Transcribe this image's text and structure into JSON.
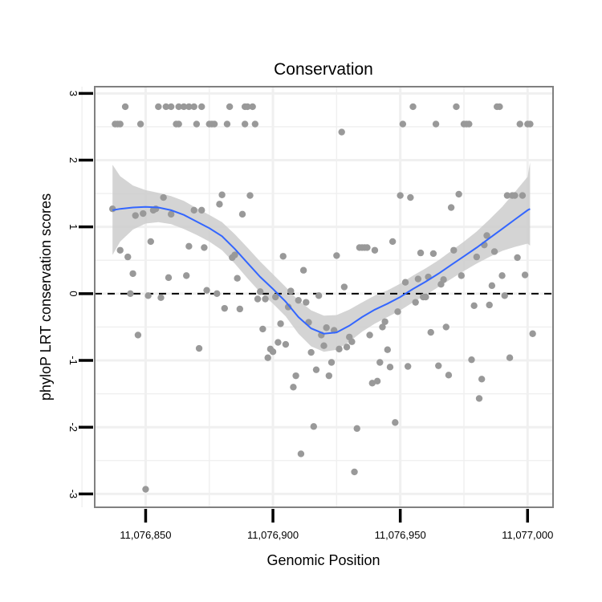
{
  "chart_data": {
    "type": "scatter",
    "title": "Conservation",
    "xlabel": "Genomic Position",
    "ylabel": "phyloP LRT conservation scores",
    "xlim": [
      11076830,
      11077010
    ],
    "ylim": [
      -3.2,
      3.1
    ],
    "x_ticks": [
      11076850,
      11076900,
      11076950,
      11077000
    ],
    "x_tick_labels": [
      "11,076,850",
      "11,076,900",
      "11,076,950",
      "11,077,000"
    ],
    "y_ticks": [
      -3,
      -2,
      -1,
      0,
      1,
      2,
      3
    ],
    "y_tick_labels": [
      "-3",
      "-2",
      "-1",
      "0",
      "1",
      "2",
      "3"
    ],
    "grid": true,
    "reference_line": {
      "y": 0,
      "style": "dashed",
      "color": "#000000"
    },
    "colors": {
      "points": "#999999",
      "smooth_line": "#3366FF",
      "confidence_band": "#cccccc",
      "panel_border": "#808080",
      "grid": "#f0f0f0"
    },
    "points": [
      {
        "x": 11076837,
        "y": 1.27
      },
      {
        "x": 11076838,
        "y": 2.54
      },
      {
        "x": 11076839,
        "y": 2.54
      },
      {
        "x": 11076840,
        "y": 2.54
      },
      {
        "x": 11076840,
        "y": 0.65
      },
      {
        "x": 11076842,
        "y": 2.8
      },
      {
        "x": 11076843,
        "y": 0.55
      },
      {
        "x": 11076844,
        "y": 0
      },
      {
        "x": 11076845,
        "y": 0.3
      },
      {
        "x": 11076846,
        "y": 1.17
      },
      {
        "x": 11076847,
        "y": -0.62
      },
      {
        "x": 11076848,
        "y": 2.54
      },
      {
        "x": 11076849,
        "y": 1.2
      },
      {
        "x": 11076850,
        "y": -2.93
      },
      {
        "x": 11076851,
        "y": -0.03
      },
      {
        "x": 11076852,
        "y": 0.78
      },
      {
        "x": 11076853,
        "y": 1.25
      },
      {
        "x": 11076854,
        "y": 1.27
      },
      {
        "x": 11076855,
        "y": 2.8
      },
      {
        "x": 11076856,
        "y": -0.06
      },
      {
        "x": 11076857,
        "y": 1.44
      },
      {
        "x": 11076858,
        "y": 2.8
      },
      {
        "x": 11076859,
        "y": 0.24
      },
      {
        "x": 11076860,
        "y": 1.19
      },
      {
        "x": 11076860,
        "y": 2.8
      },
      {
        "x": 11076862,
        "y": 2.54
      },
      {
        "x": 11076863,
        "y": 2.54
      },
      {
        "x": 11076863,
        "y": 2.8
      },
      {
        "x": 11076865,
        "y": 2.8
      },
      {
        "x": 11076866,
        "y": 0.27
      },
      {
        "x": 11076867,
        "y": 2.8
      },
      {
        "x": 11076867,
        "y": 0.71
      },
      {
        "x": 11076869,
        "y": 1.25
      },
      {
        "x": 11076869,
        "y": 2.8
      },
      {
        "x": 11076870,
        "y": 2.54
      },
      {
        "x": 11076871,
        "y": -0.82
      },
      {
        "x": 11076872,
        "y": 2.8
      },
      {
        "x": 11076872,
        "y": 1.25
      },
      {
        "x": 11076873,
        "y": 0.69
      },
      {
        "x": 11076874,
        "y": 0.05
      },
      {
        "x": 11076875,
        "y": 2.54
      },
      {
        "x": 11076876,
        "y": 2.54
      },
      {
        "x": 11076877,
        "y": 2.54
      },
      {
        "x": 11076878,
        "y": 0
      },
      {
        "x": 11076879,
        "y": 1.34
      },
      {
        "x": 11076880,
        "y": 1.48
      },
      {
        "x": 11076881,
        "y": -0.22
      },
      {
        "x": 11076882,
        "y": 2.54
      },
      {
        "x": 11076883,
        "y": 2.8
      },
      {
        "x": 11076884,
        "y": 0.54
      },
      {
        "x": 11076885,
        "y": 0.58
      },
      {
        "x": 11076886,
        "y": 0.23
      },
      {
        "x": 11076887,
        "y": -0.23
      },
      {
        "x": 11076888,
        "y": 1.19
      },
      {
        "x": 11076889,
        "y": 2.54
      },
      {
        "x": 11076889,
        "y": 2.8
      },
      {
        "x": 11076890,
        "y": 2.8
      },
      {
        "x": 11076891,
        "y": 1.47
      },
      {
        "x": 11076892,
        "y": 2.8
      },
      {
        "x": 11076893,
        "y": 2.54
      },
      {
        "x": 11076894,
        "y": -0.08
      },
      {
        "x": 11076895,
        "y": 0.03
      },
      {
        "x": 11076896,
        "y": -0.53
      },
      {
        "x": 11076897,
        "y": -0.08
      },
      {
        "x": 11076898,
        "y": -0.96
      },
      {
        "x": 11076899,
        "y": -0.83
      },
      {
        "x": 11076900,
        "y": -0.87
      },
      {
        "x": 11076901,
        "y": -0.05
      },
      {
        "x": 11076902,
        "y": -0.73
      },
      {
        "x": 11076903,
        "y": -0.45
      },
      {
        "x": 11076904,
        "y": 0.56
      },
      {
        "x": 11076905,
        "y": -0.76
      },
      {
        "x": 11076906,
        "y": -0.2
      },
      {
        "x": 11076907,
        "y": 0.04
      },
      {
        "x": 11076908,
        "y": -1.4
      },
      {
        "x": 11076909,
        "y": -1.23
      },
      {
        "x": 11076910,
        "y": -0.1
      },
      {
        "x": 11076911,
        "y": -2.4
      },
      {
        "x": 11076912,
        "y": 0.35
      },
      {
        "x": 11076913,
        "y": -0.13
      },
      {
        "x": 11076914,
        "y": -0.43
      },
      {
        "x": 11076915,
        "y": -0.88
      },
      {
        "x": 11076916,
        "y": -1.99
      },
      {
        "x": 11076917,
        "y": -1.14
      },
      {
        "x": 11076918,
        "y": -0.03
      },
      {
        "x": 11076919,
        "y": -0.62
      },
      {
        "x": 11076920,
        "y": -0.78
      },
      {
        "x": 11076921,
        "y": -0.51
      },
      {
        "x": 11076922,
        "y": -1.23
      },
      {
        "x": 11076923,
        "y": -1.03
      },
      {
        "x": 11076924,
        "y": -0.55
      },
      {
        "x": 11076925,
        "y": 0.57
      },
      {
        "x": 11076926,
        "y": -0.83
      },
      {
        "x": 11076927,
        "y": 2.42
      },
      {
        "x": 11076928,
        "y": 0.1
      },
      {
        "x": 11076929,
        "y": -0.8
      },
      {
        "x": 11076930,
        "y": -0.65
      },
      {
        "x": 11076931,
        "y": -0.72
      },
      {
        "x": 11076932,
        "y": -2.67
      },
      {
        "x": 11076933,
        "y": -2.02
      },
      {
        "x": 11076934,
        "y": 0.69
      },
      {
        "x": 11076935,
        "y": 0.69
      },
      {
        "x": 11076936,
        "y": 0.69
      },
      {
        "x": 11076937,
        "y": 0.69
      },
      {
        "x": 11076938,
        "y": -0.62
      },
      {
        "x": 11076939,
        "y": -1.34
      },
      {
        "x": 11076940,
        "y": 0.65
      },
      {
        "x": 11076941,
        "y": -1.31
      },
      {
        "x": 11076942,
        "y": -1.03
      },
      {
        "x": 11076943,
        "y": -0.5
      },
      {
        "x": 11076944,
        "y": -0.42
      },
      {
        "x": 11076945,
        "y": -0.84
      },
      {
        "x": 11076946,
        "y": -1.1
      },
      {
        "x": 11076947,
        "y": 0.78
      },
      {
        "x": 11076948,
        "y": -1.93
      },
      {
        "x": 11076949,
        "y": -0.27
      },
      {
        "x": 11076950,
        "y": 1.47
      },
      {
        "x": 11076951,
        "y": 2.54
      },
      {
        "x": 11076952,
        "y": 0.17
      },
      {
        "x": 11076953,
        "y": -1.09
      },
      {
        "x": 11076954,
        "y": 1.44
      },
      {
        "x": 11076955,
        "y": 2.8
      },
      {
        "x": 11076956,
        "y": -0.13
      },
      {
        "x": 11076957,
        "y": 0.22
      },
      {
        "x": 11076958,
        "y": 0.61
      },
      {
        "x": 11076959,
        "y": -0.05
      },
      {
        "x": 11076960,
        "y": -0.05
      },
      {
        "x": 11076961,
        "y": 0.25
      },
      {
        "x": 11076962,
        "y": -0.58
      },
      {
        "x": 11076963,
        "y": 0.6
      },
      {
        "x": 11076964,
        "y": 2.54
      },
      {
        "x": 11076965,
        "y": -1.08
      },
      {
        "x": 11076966,
        "y": 0.14
      },
      {
        "x": 11076967,
        "y": 0.21
      },
      {
        "x": 11076968,
        "y": -0.5
      },
      {
        "x": 11076969,
        "y": -1.22
      },
      {
        "x": 11076970,
        "y": 1.29
      },
      {
        "x": 11076971,
        "y": 0.65
      },
      {
        "x": 11076972,
        "y": 2.8
      },
      {
        "x": 11076973,
        "y": 1.49
      },
      {
        "x": 11076974,
        "y": 0.27
      },
      {
        "x": 11076975,
        "y": 2.54
      },
      {
        "x": 11076976,
        "y": 2.54
      },
      {
        "x": 11076977,
        "y": 2.54
      },
      {
        "x": 11076978,
        "y": -0.99
      },
      {
        "x": 11076979,
        "y": -0.18
      },
      {
        "x": 11076980,
        "y": 0.55
      },
      {
        "x": 11076981,
        "y": -1.57
      },
      {
        "x": 11076982,
        "y": -1.28
      },
      {
        "x": 11076983,
        "y": 0.73
      },
      {
        "x": 11076984,
        "y": 0.87
      },
      {
        "x": 11076985,
        "y": -0.17
      },
      {
        "x": 11076986,
        "y": 0.12
      },
      {
        "x": 11076987,
        "y": 0.63
      },
      {
        "x": 11076988,
        "y": 2.8
      },
      {
        "x": 11076989,
        "y": 2.8
      },
      {
        "x": 11076990,
        "y": 0.27
      },
      {
        "x": 11076991,
        "y": -0.03
      },
      {
        "x": 11076992,
        "y": 1.47
      },
      {
        "x": 11076993,
        "y": -0.96
      },
      {
        "x": 11076994,
        "y": 1.47
      },
      {
        "x": 11076995,
        "y": 1.47
      },
      {
        "x": 11076996,
        "y": 0.54
      },
      {
        "x": 11076997,
        "y": 2.54
      },
      {
        "x": 11076998,
        "y": 1.47
      },
      {
        "x": 11076999,
        "y": 0.28
      },
      {
        "x": 11077000,
        "y": 2.54
      },
      {
        "x": 11077001,
        "y": 2.54
      },
      {
        "x": 11077002,
        "y": -0.6
      }
    ],
    "smooth": [
      {
        "x": 11076837,
        "y": 1.25,
        "lo": 0.58,
        "hi": 1.93
      },
      {
        "x": 11076840,
        "y": 1.27,
        "lo": 0.78,
        "hi": 1.76
      },
      {
        "x": 11076845,
        "y": 1.29,
        "lo": 0.96,
        "hi": 1.62
      },
      {
        "x": 11076850,
        "y": 1.3,
        "lo": 1.05,
        "hi": 1.55
      },
      {
        "x": 11076855,
        "y": 1.29,
        "lo": 1.07,
        "hi": 1.51
      },
      {
        "x": 11076860,
        "y": 1.25,
        "lo": 1.04,
        "hi": 1.46
      },
      {
        "x": 11076865,
        "y": 1.18,
        "lo": 0.97,
        "hi": 1.39
      },
      {
        "x": 11076870,
        "y": 1.08,
        "lo": 0.88,
        "hi": 1.28
      },
      {
        "x": 11076875,
        "y": 0.98,
        "lo": 0.78,
        "hi": 1.18
      },
      {
        "x": 11076880,
        "y": 0.86,
        "lo": 0.65,
        "hi": 1.07
      },
      {
        "x": 11076885,
        "y": 0.67,
        "lo": 0.45,
        "hi": 0.89
      },
      {
        "x": 11076890,
        "y": 0.46,
        "lo": 0.23,
        "hi": 0.69
      },
      {
        "x": 11076895,
        "y": 0.25,
        "lo": 0.02,
        "hi": 0.48
      },
      {
        "x": 11076900,
        "y": 0.07,
        "lo": -0.15,
        "hi": 0.29
      },
      {
        "x": 11076905,
        "y": -0.12,
        "lo": -0.34,
        "hi": 0.1
      },
      {
        "x": 11076910,
        "y": -0.35,
        "lo": -0.6,
        "hi": -0.1
      },
      {
        "x": 11076915,
        "y": -0.52,
        "lo": -0.79,
        "hi": -0.25
      },
      {
        "x": 11076920,
        "y": -0.6,
        "lo": -0.87,
        "hi": -0.33
      },
      {
        "x": 11076925,
        "y": -0.58,
        "lo": -0.84,
        "hi": -0.32
      },
      {
        "x": 11076930,
        "y": -0.48,
        "lo": -0.72,
        "hi": -0.24
      },
      {
        "x": 11076935,
        "y": -0.35,
        "lo": -0.57,
        "hi": -0.13
      },
      {
        "x": 11076940,
        "y": -0.24,
        "lo": -0.45,
        "hi": -0.03
      },
      {
        "x": 11076945,
        "y": -0.15,
        "lo": -0.35,
        "hi": 0.05
      },
      {
        "x": 11076950,
        "y": -0.05,
        "lo": -0.25,
        "hi": 0.15
      },
      {
        "x": 11076955,
        "y": 0.07,
        "lo": -0.13,
        "hi": 0.27
      },
      {
        "x": 11076960,
        "y": 0.18,
        "lo": -0.02,
        "hi": 0.38
      },
      {
        "x": 11076965,
        "y": 0.3,
        "lo": 0.1,
        "hi": 0.5
      },
      {
        "x": 11076970,
        "y": 0.43,
        "lo": 0.22,
        "hi": 0.64
      },
      {
        "x": 11076975,
        "y": 0.56,
        "lo": 0.34,
        "hi": 0.78
      },
      {
        "x": 11076980,
        "y": 0.69,
        "lo": 0.45,
        "hi": 0.93
      },
      {
        "x": 11076985,
        "y": 0.83,
        "lo": 0.55,
        "hi": 1.11
      },
      {
        "x": 11076990,
        "y": 0.97,
        "lo": 0.64,
        "hi": 1.3
      },
      {
        "x": 11076995,
        "y": 1.11,
        "lo": 0.7,
        "hi": 1.52
      },
      {
        "x": 11077000,
        "y": 1.25,
        "lo": 0.75,
        "hi": 1.75
      },
      {
        "x": 11077001,
        "y": 1.27,
        "lo": 0.72,
        "hi": 1.97
      }
    ]
  }
}
